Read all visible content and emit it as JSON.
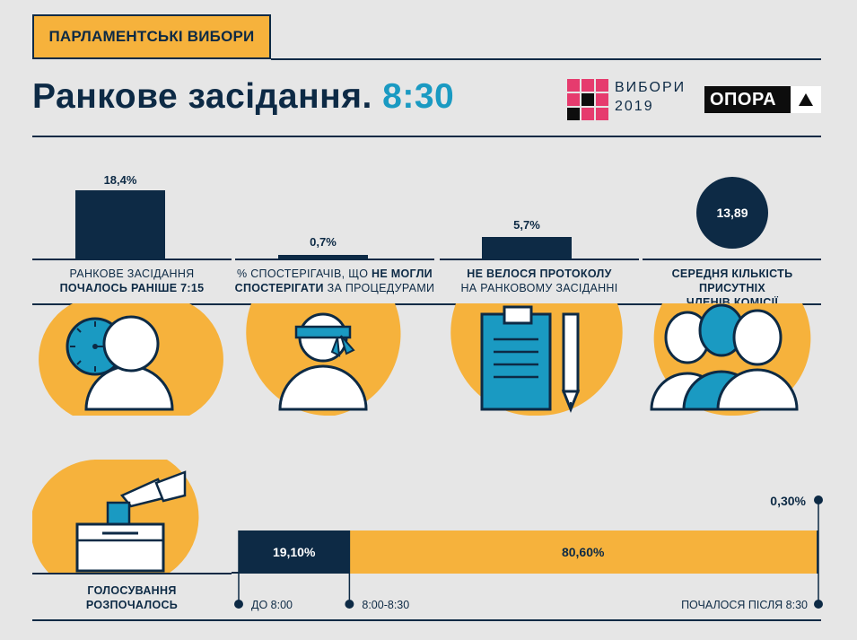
{
  "header": {
    "tag": "ПАРЛАМЕНТСЬКІ ВИБОРИ",
    "title_main": "Ранкове засідання.",
    "title_time": "8:30",
    "logo_vybory_line1": "ВИБОРИ",
    "logo_vybory_line2": "2019",
    "logo_opora": "ОПОРА"
  },
  "colors": {
    "navy": "#0d2a45",
    "orange": "#f6b23c",
    "teal": "#1a9ac2",
    "pink": "#e63b6e",
    "background": "#e6e6e6"
  },
  "stats": [
    {
      "value": "18,4%",
      "caption_line1": "РАНКОВЕ ЗАСІДАННЯ",
      "caption_line2_bold": "ПОЧАЛОСЬ РАНІШЕ 7:15",
      "icon": "clock-person-icon"
    },
    {
      "value": "0,7%",
      "caption_line1_pre": "% СПОСТЕРІГАЧІВ, ЩО ",
      "caption_line1_bold": "НЕ МОГЛИ",
      "caption_line2_bold": "СПОСТЕРІГАТИ",
      "caption_line2_post": " ЗА ПРОЦЕДУРАМИ",
      "icon": "blindfolded-person-icon"
    },
    {
      "value": "5,7%",
      "caption_line1_bold": "НЕ ВЕЛОСЯ ПРОТОКОЛУ",
      "caption_line2": "НА РАНКОВОМУ ЗАСІДАННІ",
      "icon": "clipboard-pen-icon"
    },
    {
      "value": "13,89",
      "caption_line1_bold": "СЕРЕДНЯ КІЛЬКІСТЬ ПРИСУТНІХ",
      "caption_line2_bold": "ЧЛЕНІВ КОМІСІЇ",
      "icon": "group-people-icon"
    }
  ],
  "voting": {
    "label_line1": "ГОЛОСУВАННЯ",
    "label_line2": "РОЗПОЧАЛОСЬ",
    "icon": "ballot-box-icon"
  },
  "chart_data": [
    {
      "type": "bar",
      "categories": [
        "РАНКОВЕ ЗАСІДАННЯ ПОЧАЛОСЬ РАНІШЕ 7:15",
        "% СПОСТЕРІГАЧІВ, ЩО НЕ МОГЛИ СПОСТЕРІГАТИ ЗА ПРОЦЕДУРАМИ",
        "НЕ ВЕЛОСЯ ПРОТОКОЛУ НА РАНКОВОМУ ЗАСІДАННІ"
      ],
      "values": [
        18.4,
        0.7,
        5.7
      ],
      "value_labels": [
        "18,4%",
        "0,7%",
        "5,7%"
      ],
      "unit": "%",
      "ylim": [
        0,
        18.4
      ]
    },
    {
      "type": "bar",
      "orientation": "horizontal-stacked",
      "categories": [
        "ДО 8:00",
        "8:00-8:30",
        "ПОЧАЛОСЯ ПІСЛЯ 8:30"
      ],
      "values": [
        19.1,
        80.6,
        0.3
      ],
      "value_labels": [
        "19,10%",
        "80,60%",
        "0,30%"
      ],
      "colors": [
        "#0d2a45",
        "#f6b23c",
        "#0d2a45"
      ],
      "unit": "%",
      "xlim": [
        0,
        100
      ]
    }
  ]
}
